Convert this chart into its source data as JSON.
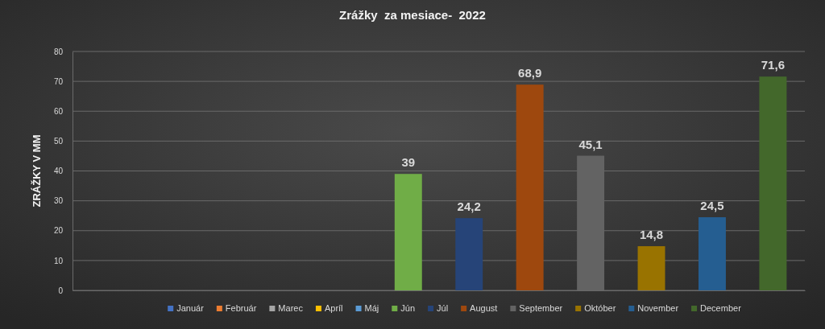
{
  "chart_data": {
    "type": "bar",
    "title": "Zrážky  za mesiace-  2022",
    "ylabel": "ZRÁŽKY V MM",
    "categories": [
      null,
      null,
      null,
      null,
      null,
      null,
      null,
      null,
      null,
      null,
      null,
      null
    ],
    "ylim": [
      0,
      80
    ],
    "yticks": [
      0,
      10,
      20,
      30,
      40,
      50,
      60,
      70,
      80
    ],
    "grid": "y",
    "legend": "bottom",
    "series": [
      {
        "name": "Január",
        "color": "#4472c4",
        "values": [
          null,
          null,
          null,
          null,
          null,
          null,
          null,
          null,
          null,
          null,
          null,
          null
        ]
      },
      {
        "name": "Február",
        "color": "#ed7d31",
        "values": [
          null,
          null,
          null,
          null,
          null,
          null,
          null,
          null,
          null,
          null,
          null,
          null
        ]
      },
      {
        "name": "Marec",
        "color": "#a5a5a5",
        "values": [
          null,
          null,
          null,
          null,
          null,
          null,
          null,
          null,
          null,
          null,
          null,
          null
        ]
      },
      {
        "name": "Apríl",
        "color": "#ffc000",
        "values": [
          null,
          null,
          null,
          null,
          null,
          null,
          null,
          null,
          null,
          null,
          null,
          null
        ]
      },
      {
        "name": "Máj",
        "color": "#5b9bd5",
        "values": [
          null,
          null,
          null,
          null,
          null,
          null,
          null,
          null,
          null,
          null,
          null,
          null
        ]
      },
      {
        "name": "Jún",
        "color": "#70ad47",
        "values": [
          null,
          null,
          null,
          null,
          null,
          39,
          null,
          null,
          null,
          null,
          null,
          null
        ],
        "value_labels": [
          null,
          null,
          null,
          null,
          null,
          "39",
          null,
          null,
          null,
          null,
          null,
          null
        ]
      },
      {
        "name": "Júl",
        "color": "#264478",
        "values": [
          null,
          null,
          null,
          null,
          null,
          null,
          24.2,
          null,
          null,
          null,
          null,
          null
        ],
        "value_labels": [
          null,
          null,
          null,
          null,
          null,
          null,
          "24,2",
          null,
          null,
          null,
          null,
          null
        ]
      },
      {
        "name": "August",
        "color": "#9e480e",
        "values": [
          null,
          null,
          null,
          null,
          null,
          null,
          null,
          68.9,
          null,
          null,
          null,
          null
        ],
        "value_labels": [
          null,
          null,
          null,
          null,
          null,
          null,
          null,
          "68,9",
          null,
          null,
          null,
          null
        ]
      },
      {
        "name": "September",
        "color": "#636363",
        "values": [
          null,
          null,
          null,
          null,
          null,
          null,
          null,
          null,
          45.1,
          null,
          null,
          null
        ],
        "value_labels": [
          null,
          null,
          null,
          null,
          null,
          null,
          null,
          null,
          "45,1",
          null,
          null,
          null
        ]
      },
      {
        "name": "Október",
        "color": "#997300",
        "values": [
          null,
          null,
          null,
          null,
          null,
          null,
          null,
          null,
          null,
          14.8,
          null,
          null
        ],
        "value_labels": [
          null,
          null,
          null,
          null,
          null,
          null,
          null,
          null,
          null,
          "14,8",
          null,
          null
        ]
      },
      {
        "name": "November",
        "color": "#255e91",
        "values": [
          null,
          null,
          null,
          null,
          null,
          null,
          null,
          null,
          null,
          null,
          24.5,
          null
        ],
        "value_labels": [
          null,
          null,
          null,
          null,
          null,
          null,
          null,
          null,
          null,
          null,
          "24,5",
          null
        ]
      },
      {
        "name": "December",
        "color": "#43682b",
        "values": [
          null,
          null,
          null,
          null,
          null,
          null,
          null,
          null,
          null,
          null,
          null,
          71.6
        ],
        "value_labels": [
          null,
          null,
          null,
          null,
          null,
          null,
          null,
          null,
          null,
          null,
          null,
          "71,6"
        ]
      }
    ]
  }
}
